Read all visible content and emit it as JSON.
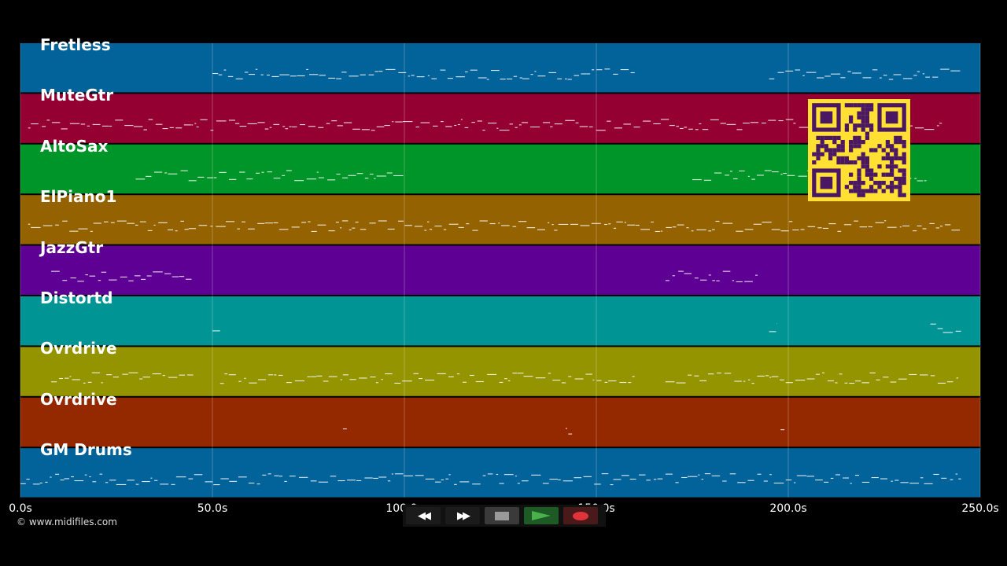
{
  "tracks": [
    {
      "name": "Fretless",
      "color": "#02629a"
    },
    {
      "name": "MuteGtr",
      "color": "#940031"
    },
    {
      "name": "AltoSax",
      "color": "#009528"
    },
    {
      "name": "ElPiano1",
      "color": "#946300"
    },
    {
      "name": "JazzGtr",
      "color": "#5e0094"
    },
    {
      "name": "Distortd",
      "color": "#009494"
    },
    {
      "name": "Ovrdrive",
      "color": "#949400"
    },
    {
      "name": "Ovrdrive",
      "color": "#942900"
    },
    {
      "name": "GM Drums",
      "color": "#02629a"
    }
  ],
  "timeline": {
    "ticks": [
      "0.0s",
      "50.0s",
      "100.0s",
      "150.0s",
      "200.0s",
      "250.0s"
    ],
    "tick_values": [
      0,
      50,
      100,
      150,
      200,
      250
    ],
    "range": [
      0,
      250
    ]
  },
  "copyright": "© www.midifiles.com",
  "transport": {
    "rewind": "◀◀",
    "ffwd": "▶▶",
    "stop_icon": "stop-icon",
    "play_icon": "play-icon",
    "record_icon": "record-icon"
  },
  "qr_colors": {
    "bg": "#ffe033",
    "fg": "#4a1763"
  }
}
